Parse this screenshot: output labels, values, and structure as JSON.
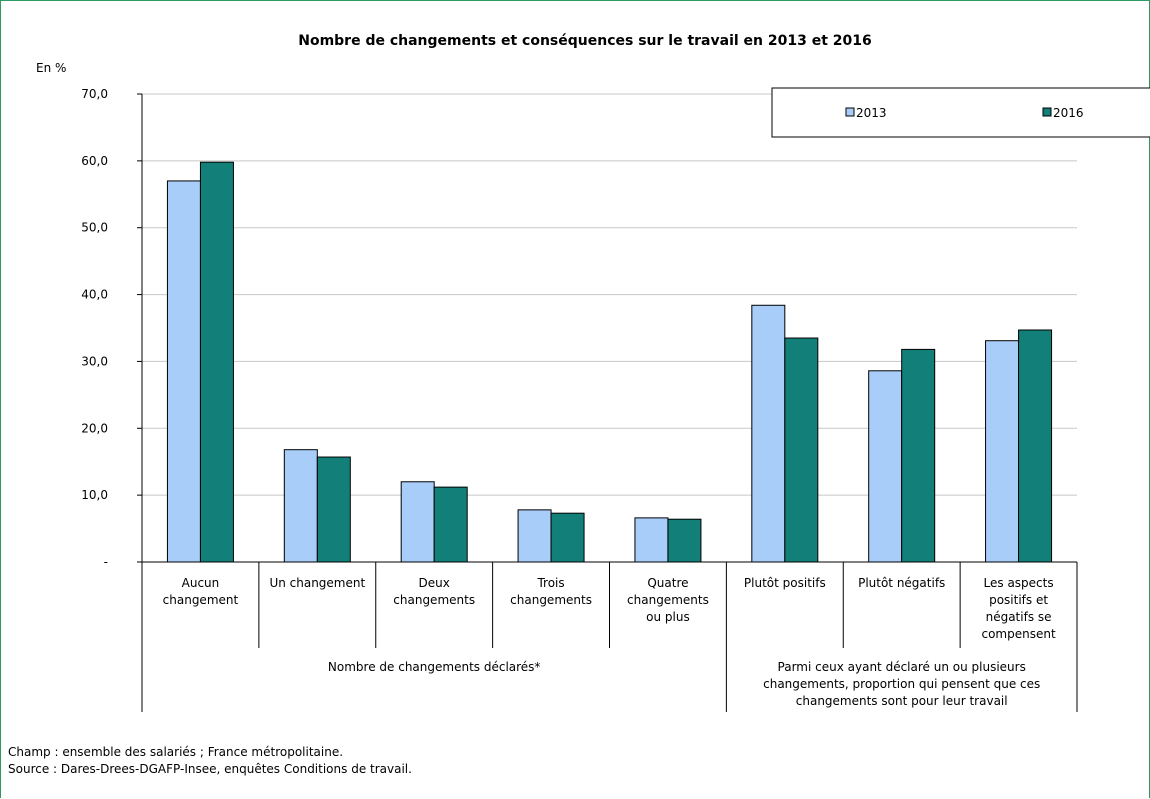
{
  "chart_data": {
    "type": "bar",
    "title": "Nombre de changements et conséquences sur le travail en 2013 et 2016",
    "y_unit_label": "En %",
    "ylim": [
      0,
      70
    ],
    "y_ticks": [
      "-",
      "10,0",
      "20,0",
      "30,0",
      "40,0",
      "50,0",
      "60,0",
      "70,0"
    ],
    "grid": "horizontal",
    "legend_position": "top-right",
    "categories": [
      [
        "Aucun",
        "changement"
      ],
      [
        "Un changement"
      ],
      [
        "Deux",
        "changements"
      ],
      [
        "Trois",
        "changements"
      ],
      [
        "Quatre",
        "changements",
        "ou plus"
      ],
      [
        "Plutôt positifs"
      ],
      [
        "Plutôt négatifs"
      ],
      [
        "Les aspects",
        "positifs et",
        "négatifs se",
        "compensent"
      ]
    ],
    "groups": [
      {
        "label": [
          "Nombre de changements déclarés*"
        ],
        "span": [
          0,
          4
        ]
      },
      {
        "label": [
          "Parmi ceux ayant déclaré un ou plusieurs",
          "changements, proportion qui pensent que ces",
          "changements sont pour leur travail"
        ],
        "span": [
          5,
          7
        ]
      }
    ],
    "series": [
      {
        "name": "2013",
        "color": "#a9cdf9",
        "values": [
          57.0,
          16.8,
          12.0,
          7.8,
          6.6,
          38.4,
          28.6,
          33.1
        ]
      },
      {
        "name": "2016",
        "color": "#128079",
        "values": [
          59.8,
          15.7,
          11.2,
          7.3,
          6.4,
          33.5,
          31.8,
          34.7
        ]
      }
    ]
  },
  "notes": {
    "champ": "Champ : ensemble des salariés ; France métropolitaine.",
    "source": "Source : Dares-Drees-DGAFP-Insee, enquêtes Conditions de travail."
  }
}
